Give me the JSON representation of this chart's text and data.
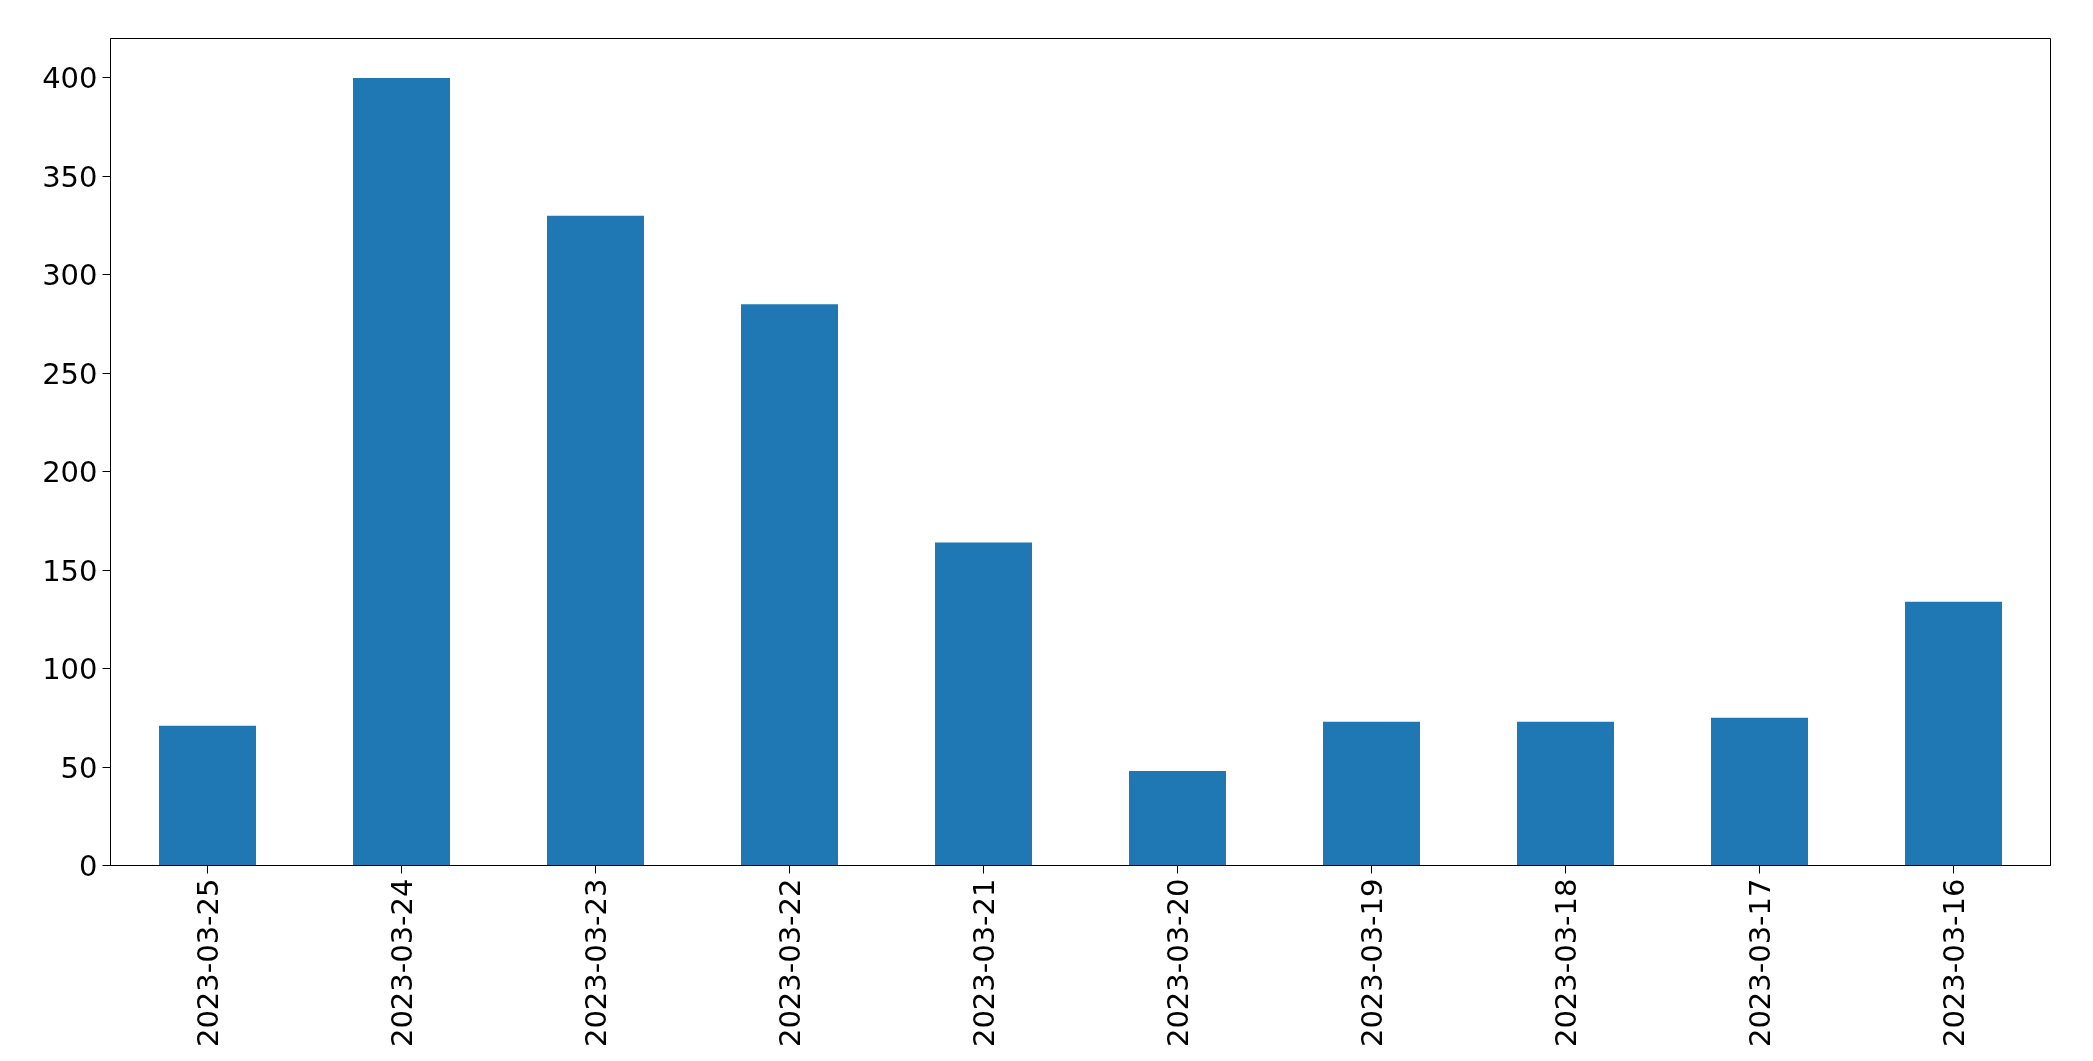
{
  "chart_data": {
    "type": "bar",
    "categories": [
      "2023-03-25",
      "2023-03-24",
      "2023-03-23",
      "2023-03-22",
      "2023-03-21",
      "2023-03-20",
      "2023-03-19",
      "2023-03-18",
      "2023-03-17",
      "2023-03-16"
    ],
    "values": [
      71,
      400,
      330,
      285,
      164,
      48,
      73,
      73,
      75,
      134
    ],
    "color": "#1f77b4",
    "ylim": [
      0,
      420
    ],
    "yticks": [
      0,
      50,
      100,
      150,
      200,
      250,
      300,
      350,
      400
    ],
    "grid": false
  }
}
